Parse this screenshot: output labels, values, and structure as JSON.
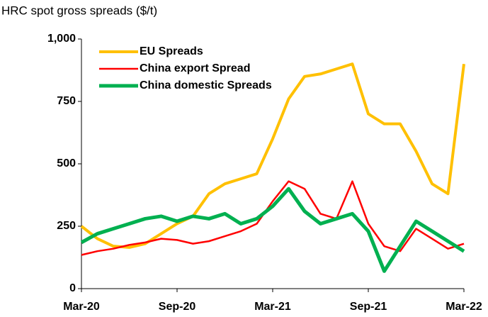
{
  "chart_data": {
    "type": "line",
    "title": "HRC spot gross spreads ($/t)",
    "categories": [
      "Mar-20",
      null,
      null,
      null,
      null,
      null,
      "Sep-20",
      null,
      null,
      null,
      null,
      null,
      "Mar-21",
      null,
      null,
      null,
      null,
      null,
      "Sep-21",
      null,
      null,
      null,
      null,
      null,
      "Mar-22"
    ],
    "series": [
      {
        "name": "EU Spreads",
        "color": "#FFC000",
        "values": [
          250,
          200,
          170,
          165,
          180,
          220,
          260,
          290,
          380,
          420,
          440,
          460,
          600,
          760,
          850,
          860,
          880,
          900,
          700,
          660,
          660,
          550,
          420,
          380,
          900
        ]
      },
      {
        "name": "China export Spread",
        "color": "#FF0000",
        "values": [
          135,
          150,
          160,
          175,
          185,
          200,
          195,
          180,
          190,
          210,
          230,
          260,
          350,
          430,
          400,
          300,
          280,
          430,
          260,
          170,
          150,
          240,
          200,
          160,
          180
        ]
      },
      {
        "name": "China domestic Spreads",
        "color": "#00B050",
        "values": [
          185,
          220,
          240,
          260,
          280,
          290,
          270,
          290,
          280,
          300,
          260,
          280,
          330,
          400,
          310,
          260,
          280,
          300,
          230,
          70,
          170,
          270,
          230,
          190,
          150
        ]
      }
    ],
    "ylim": [
      0,
      1000
    ],
    "yticks": [
      0,
      250,
      500,
      750,
      {
        "value": 1000,
        "label": "1,000"
      }
    ],
    "legend": "upper left"
  }
}
